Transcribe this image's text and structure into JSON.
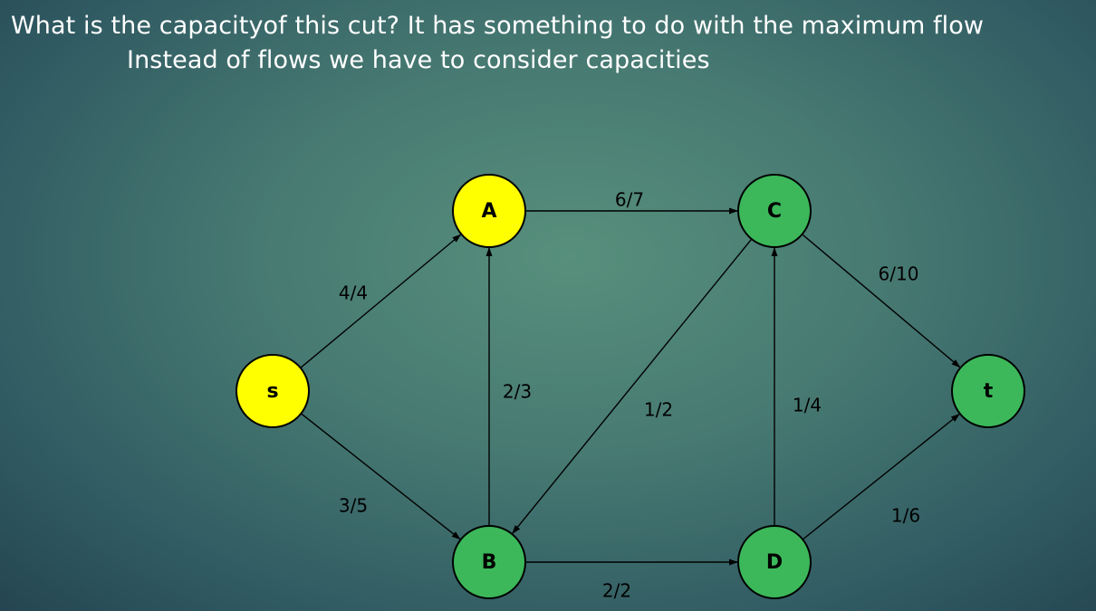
{
  "title": {
    "line1": "What is the capacityof this cut? It has something to do with the maximum flow",
    "line2": "Instead of flows we have to consider capacities"
  },
  "colors": {
    "yellow_node": "#ffff00",
    "green_node": "#3cb85a"
  },
  "nodes": [
    {
      "id": "s",
      "label": "s",
      "color": "yellow"
    },
    {
      "id": "A",
      "label": "A",
      "color": "yellow"
    },
    {
      "id": "B",
      "label": "B",
      "color": "green"
    },
    {
      "id": "C",
      "label": "C",
      "color": "green"
    },
    {
      "id": "D",
      "label": "D",
      "color": "green"
    },
    {
      "id": "t",
      "label": "t",
      "color": "green"
    }
  ],
  "edges": [
    {
      "from": "s",
      "to": "A",
      "label": "4/4"
    },
    {
      "from": "s",
      "to": "B",
      "label": "3/5"
    },
    {
      "from": "B",
      "to": "A",
      "label": "2/3"
    },
    {
      "from": "A",
      "to": "C",
      "label": "6/7"
    },
    {
      "from": "C",
      "to": "B",
      "label": "1/2"
    },
    {
      "from": "B",
      "to": "D",
      "label": "2/2"
    },
    {
      "from": "D",
      "to": "C",
      "label": "1/4"
    },
    {
      "from": "C",
      "to": "t",
      "label": "6/10"
    },
    {
      "from": "D",
      "to": "t",
      "label": "1/6"
    }
  ]
}
